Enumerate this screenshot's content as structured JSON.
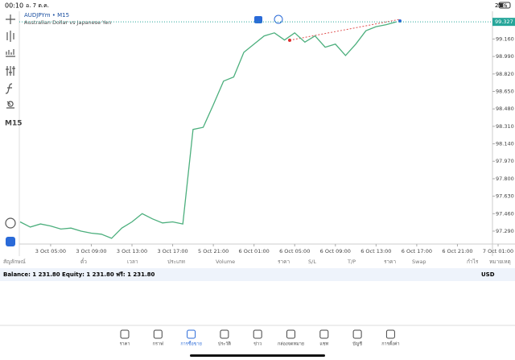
{
  "status_bar": {
    "time": "00:10",
    "date": "อ. 7 ต.ค.",
    "battery": "25%"
  },
  "side_toolbar": {
    "timeframe": "M15"
  },
  "chart_data": {
    "type": "line",
    "title": "AUDJPYm • M15",
    "subtitle": "Australian Dollar vs Japanese Yen",
    "categories": [
      null,
      null,
      null,
      "3 Oct 05:00",
      null,
      null,
      null,
      "3 Oct 09:00",
      null,
      null,
      null,
      "3 Oct 13:00",
      null,
      null,
      null,
      "3 Oct 17:00",
      null,
      null,
      null,
      "5 Oct 21:00",
      null,
      null,
      null,
      "6 Oct 01:00",
      null,
      null,
      null,
      "6 Oct 05:00",
      null,
      null,
      null,
      "6 Oct 09:00",
      null,
      null,
      null,
      "6 Oct 13:00",
      null,
      null,
      null,
      "6 Oct 17:00",
      null,
      null,
      null,
      "6 Oct 21:00",
      null,
      null,
      null,
      "7 Oct 01:00"
    ],
    "series": [
      {
        "name": "AUDJPYm",
        "color": "#4caf7d",
        "values": [
          97.38,
          97.33,
          97.36,
          97.34,
          97.31,
          97.32,
          97.29,
          97.27,
          97.26,
          97.22,
          97.32,
          97.38,
          97.46,
          97.41,
          97.37,
          97.38,
          97.36,
          98.28,
          98.3,
          98.52,
          98.75,
          98.79,
          99.03,
          99.11,
          99.19,
          99.22,
          99.15,
          99.22,
          99.13,
          99.19,
          99.08,
          99.11,
          99.0,
          99.11,
          99.24,
          99.28,
          99.3,
          99.327,
          null,
          null,
          null,
          null,
          null,
          null,
          null,
          null,
          null,
          null
        ]
      }
    ],
    "ylim": [
      97.188,
      99.43
    ],
    "yticks": [
      {
        "value": 97.29,
        "label": "97.290"
      },
      {
        "value": 97.46,
        "label": "97.460"
      },
      {
        "value": 97.63,
        "label": "97.630"
      },
      {
        "value": 97.8,
        "label": "97.800"
      },
      {
        "value": 97.97,
        "label": "97.970"
      },
      {
        "value": 98.14,
        "label": "98.140"
      },
      {
        "value": 98.31,
        "label": "98.310"
      },
      {
        "value": 98.48,
        "label": "98.480"
      },
      {
        "value": 98.65,
        "label": "98.650"
      },
      {
        "value": 98.82,
        "label": "98.820"
      },
      {
        "value": 98.99,
        "label": "98.990"
      },
      {
        "value": 99.16,
        "label": "99.160"
      }
    ],
    "last_price": 99.327,
    "grid": false
  },
  "table_header": [
    "สัญลักษณ์",
    "ตั๋ว",
    "เวลา",
    "ประเภท",
    "Volume",
    "ราคา",
    "S/L",
    "T/P",
    "ราคา",
    "Swap",
    "กำไร",
    "หมายเหตุ"
  ],
  "balance": {
    "text": "Balance: 1 231.80 Equity: 1 231.80 ฟรี: 1 231.80",
    "currency": "USD"
  },
  "nav": [
    "ราคา",
    "กราฟ",
    "การซื้อขาย",
    "ประวัติ",
    "ข่าว",
    "กล่องจดหมาย",
    "แชท",
    "บัญชี",
    "การตั้งค่า"
  ]
}
